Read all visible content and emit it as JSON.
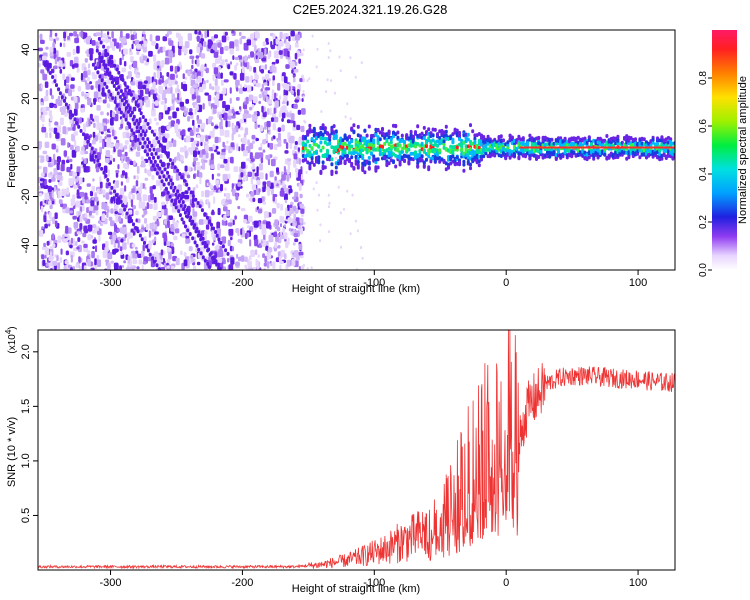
{
  "title": "C2E5.2024.321.19.26.G28",
  "chart_data": [
    {
      "type": "heatmap",
      "name": "spectrogram",
      "xlabel": "Height of straight line (km)",
      "ylabel": "Frequency (Hz)",
      "xlim": [
        -355,
        128
      ],
      "ylim": [
        -50,
        48
      ],
      "xticks": [
        -300,
        -200,
        -100,
        0,
        100
      ],
      "xtick_labels": [
        "-300",
        "-200",
        "-100",
        "0",
        "100"
      ],
      "yticks": [
        40,
        20,
        0,
        -20,
        -40
      ],
      "ytick_labels": [
        "40",
        "20",
        "0",
        "-20",
        "-40"
      ],
      "noise_region_x": [
        -355,
        -155
      ],
      "signal_band_hz": [
        -3,
        3
      ],
      "colorbar": {
        "label": "Normalized spectral amplitude",
        "range": [
          0.0,
          1.0
        ],
        "ticks": [
          0.0,
          0.2,
          0.4,
          0.6,
          0.8
        ],
        "tick_labels": [
          "0.0",
          "0.2",
          "0.4",
          "0.6",
          "0.8"
        ]
      }
    },
    {
      "type": "line",
      "name": "snr",
      "xlabel": "Height of straight line (km)",
      "ylabel": "SNR (10 * v/v)",
      "scale_label": "(x10",
      "scale_exp": "4",
      "scale_close": ")",
      "xlim": [
        -355,
        128
      ],
      "ylim": [
        0.0,
        2.2
      ],
      "xticks": [
        -300,
        -200,
        -100,
        0,
        100
      ],
      "xtick_labels": [
        "-300",
        "-200",
        "-100",
        "0",
        "100"
      ],
      "yticks": [
        0.5,
        1.0,
        1.5,
        2.0
      ],
      "ytick_labels": [
        "0.5",
        "1.0",
        "1.5",
        "2.0"
      ],
      "color": "#ee3333",
      "series": [
        {
          "name": "SNR",
          "x": [
            -355,
            -300,
            -250,
            -200,
            -160,
            -140,
            -120,
            -100,
            -90,
            -80,
            -70,
            -60,
            -50,
            -45,
            -40,
            -35,
            -30,
            -25,
            -20,
            -15,
            -10,
            -5,
            0,
            5,
            10,
            15,
            20,
            25,
            30,
            40,
            50,
            60,
            70,
            80,
            90,
            100,
            110,
            120,
            128
          ],
          "values": [
            0.03,
            0.03,
            0.03,
            0.03,
            0.03,
            0.05,
            0.09,
            0.16,
            0.2,
            0.26,
            0.3,
            0.36,
            0.45,
            0.55,
            0.62,
            0.72,
            0.85,
            0.95,
            1.05,
            1.12,
            1.2,
            1.28,
            1.32,
            1.38,
            1.18,
            1.45,
            1.55,
            1.62,
            1.7,
            1.76,
            1.78,
            1.78,
            1.77,
            1.76,
            1.75,
            1.75,
            1.73,
            1.72,
            1.72
          ]
        }
      ]
    }
  ]
}
